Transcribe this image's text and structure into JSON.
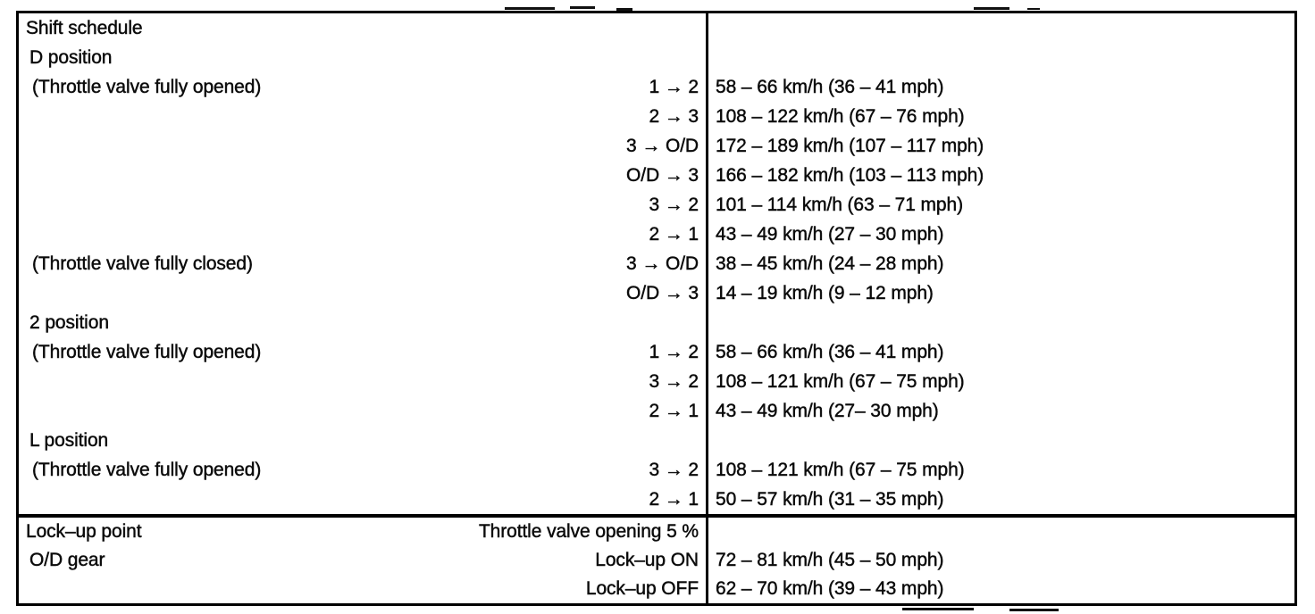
{
  "table": {
    "sections": [
      {
        "id": "shift-schedule",
        "rows": [
          {
            "left": "Shift schedule",
            "mid": "",
            "right": "",
            "indent": 0
          },
          {
            "left": "D position",
            "mid": "",
            "right": "",
            "indent": 1
          },
          {
            "left": "(Throttle valve fully opened)",
            "mid": "1 → 2",
            "right": "58 – 66 km/h (36 – 41 mph)",
            "indent": 2
          },
          {
            "left": "",
            "mid": "2 → 3",
            "right": "108 – 122 km/h (67 – 76 mph)",
            "indent": 2
          },
          {
            "left": "",
            "mid": "3 → O/D",
            "right": "172 – 189 km/h (107 – 117 mph)",
            "indent": 2
          },
          {
            "left": "",
            "mid": "O/D → 3",
            "right": "166 – 182 km/h (103 – 113 mph)",
            "indent": 2
          },
          {
            "left": "",
            "mid": "3 → 2",
            "right": "101 – 114 km/h (63 – 71 mph)",
            "indent": 2
          },
          {
            "left": "",
            "mid": "2 → 1",
            "right": "43 – 49 km/h (27 – 30 mph)",
            "indent": 2
          },
          {
            "left": "(Throttle valve fully closed)",
            "mid": "3 → O/D",
            "right": "38 – 45 km/h (24 – 28 mph)",
            "indent": 2
          },
          {
            "left": "",
            "mid": "O/D → 3",
            "right": "14 – 19 km/h (9 – 12 mph)",
            "indent": 2
          },
          {
            "left": "2 position",
            "mid": "",
            "right": "",
            "indent": 1
          },
          {
            "left": "(Throttle valve fully opened)",
            "mid": "1 → 2",
            "right": "58 – 66 km/h (36 – 41 mph)",
            "indent": 2
          },
          {
            "left": "",
            "mid": "3 → 2",
            "right": "108 – 121 km/h (67 – 75 mph)",
            "indent": 2
          },
          {
            "left": "",
            "mid": "2 → 1",
            "right": "43 – 49 km/h (27– 30 mph)",
            "indent": 2
          },
          {
            "left": "L position",
            "mid": "",
            "right": "",
            "indent": 1
          },
          {
            "left": "(Throttle valve fully opened)",
            "mid": "3 → 2",
            "right": "108 – 121 km/h (67 – 75 mph)",
            "indent": 2
          },
          {
            "left": "",
            "mid": "2 → 1",
            "right": "50 – 57 km/h (31 – 35 mph)",
            "indent": 2
          }
        ]
      },
      {
        "id": "lock-up-point",
        "rows": [
          {
            "left": "Lock–up point",
            "mid": "Throttle valve opening 5 %",
            "right": "",
            "indent": 0
          },
          {
            "left": "O/D gear",
            "mid": "Lock–up ON",
            "right": "72 – 81 km/h (45 – 50 mph)",
            "indent": 1
          },
          {
            "left": "",
            "mid": "Lock–up OFF",
            "right": "62 – 70 km/h (39 – 43 mph)",
            "indent": 1
          }
        ]
      }
    ]
  },
  "colors": {
    "ink": "#0b0b0b",
    "paper": "#ffffff"
  }
}
